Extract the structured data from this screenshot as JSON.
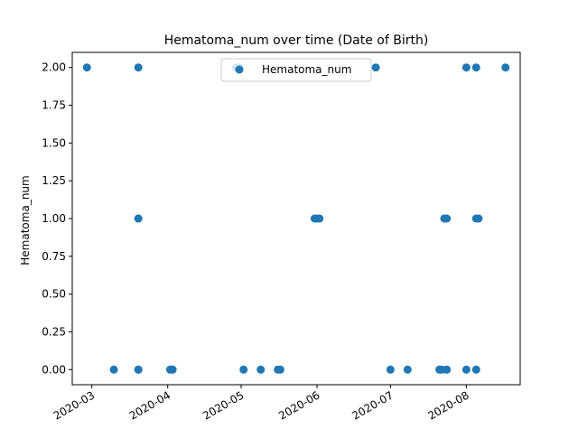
{
  "chart_data": {
    "type": "scatter",
    "title": "Hematoma_num over time (Date of Birth)",
    "xlabel": "",
    "ylabel": "Hematoma_num",
    "x_axis_kind": "date",
    "xlim": [
      "2020-02-22",
      "2020-08-23"
    ],
    "ylim": [
      -0.1,
      2.1
    ],
    "grid": false,
    "legend_position": "top-center",
    "marker_color": "#1f77b4",
    "x_ticks": [
      {
        "value": "2020-03-01",
        "label": "2020-03"
      },
      {
        "value": "2020-04-01",
        "label": "2020-04"
      },
      {
        "value": "2020-05-01",
        "label": "2020-05"
      },
      {
        "value": "2020-06-01",
        "label": "2020-06"
      },
      {
        "value": "2020-07-01",
        "label": "2020-07"
      },
      {
        "value": "2020-08-01",
        "label": "2020-08"
      }
    ],
    "y_ticks": [
      {
        "value": 0.0,
        "label": "0.00"
      },
      {
        "value": 0.25,
        "label": "0.25"
      },
      {
        "value": 0.5,
        "label": "0.50"
      },
      {
        "value": 0.75,
        "label": "0.75"
      },
      {
        "value": 1.0,
        "label": "1.00"
      },
      {
        "value": 1.25,
        "label": "1.25"
      },
      {
        "value": 1.5,
        "label": "1.50"
      },
      {
        "value": 1.75,
        "label": "1.75"
      },
      {
        "value": 2.0,
        "label": "2.00"
      }
    ],
    "series": [
      {
        "name": "Hematoma_num",
        "points": [
          {
            "x": "2020-02-28",
            "y": 2
          },
          {
            "x": "2020-03-10",
            "y": 0
          },
          {
            "x": "2020-03-20",
            "y": 2
          },
          {
            "x": "2020-03-20",
            "y": 1
          },
          {
            "x": "2020-03-20",
            "y": 1
          },
          {
            "x": "2020-03-20",
            "y": 0
          },
          {
            "x": "2020-03-20",
            "y": 0
          },
          {
            "x": "2020-04-02",
            "y": 0
          },
          {
            "x": "2020-04-03",
            "y": 0
          },
          {
            "x": "2020-04-29",
            "y": 2
          },
          {
            "x": "2020-04-30",
            "y": 2
          },
          {
            "x": "2020-05-02",
            "y": 0
          },
          {
            "x": "2020-05-09",
            "y": 0
          },
          {
            "x": "2020-05-16",
            "y": 0
          },
          {
            "x": "2020-05-17",
            "y": 0
          },
          {
            "x": "2020-05-31",
            "y": 1
          },
          {
            "x": "2020-06-01",
            "y": 1
          },
          {
            "x": "2020-06-02",
            "y": 1
          },
          {
            "x": "2020-06-25",
            "y": 2
          },
          {
            "x": "2020-07-01",
            "y": 0
          },
          {
            "x": "2020-07-08",
            "y": 0
          },
          {
            "x": "2020-07-21",
            "y": 0
          },
          {
            "x": "2020-07-22",
            "y": 0
          },
          {
            "x": "2020-07-24",
            "y": 0
          },
          {
            "x": "2020-07-23",
            "y": 1
          },
          {
            "x": "2020-07-24",
            "y": 1
          },
          {
            "x": "2020-08-01",
            "y": 2
          },
          {
            "x": "2020-08-01",
            "y": 0
          },
          {
            "x": "2020-08-05",
            "y": 2
          },
          {
            "x": "2020-08-05",
            "y": 1
          },
          {
            "x": "2020-08-06",
            "y": 1
          },
          {
            "x": "2020-08-05",
            "y": 0
          },
          {
            "x": "2020-08-17",
            "y": 2
          }
        ]
      }
    ]
  }
}
